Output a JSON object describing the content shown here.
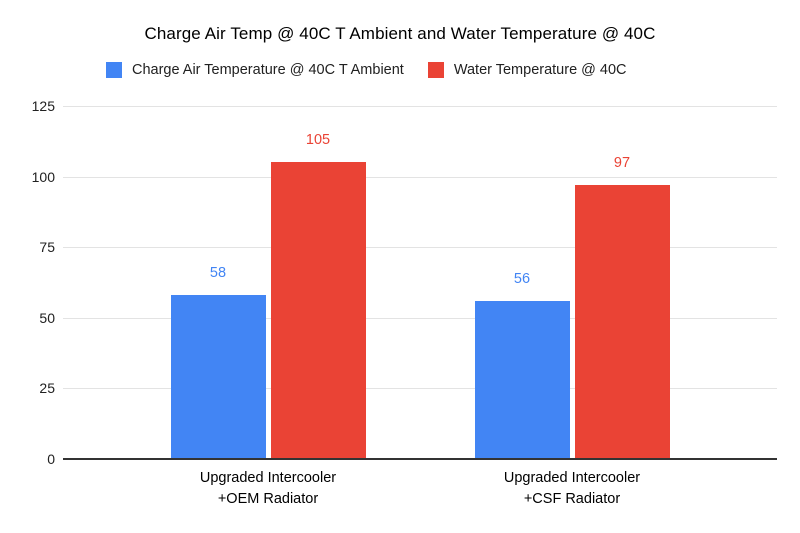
{
  "chart_data": {
    "type": "bar",
    "title": "Charge Air Temp @ 40C T Ambient and Water Temperature @ 40C",
    "categories": [
      "Upgraded Intercooler\n+OEM Radiator",
      "Upgraded Intercooler\n+CSF Radiator"
    ],
    "series": [
      {
        "name": "Charge Air Temperature @ 40C T Ambient",
        "color": "#4285F4",
        "values": [
          58,
          56
        ]
      },
      {
        "name": "Water Temperature @ 40C",
        "color": "#EA4335",
        "values": [
          105,
          97
        ]
      }
    ],
    "ylim": [
      0,
      125
    ],
    "yticks": [
      0,
      25,
      50,
      75,
      100,
      125
    ],
    "grid": true,
    "legend_position": "top",
    "value_labels": true
  }
}
